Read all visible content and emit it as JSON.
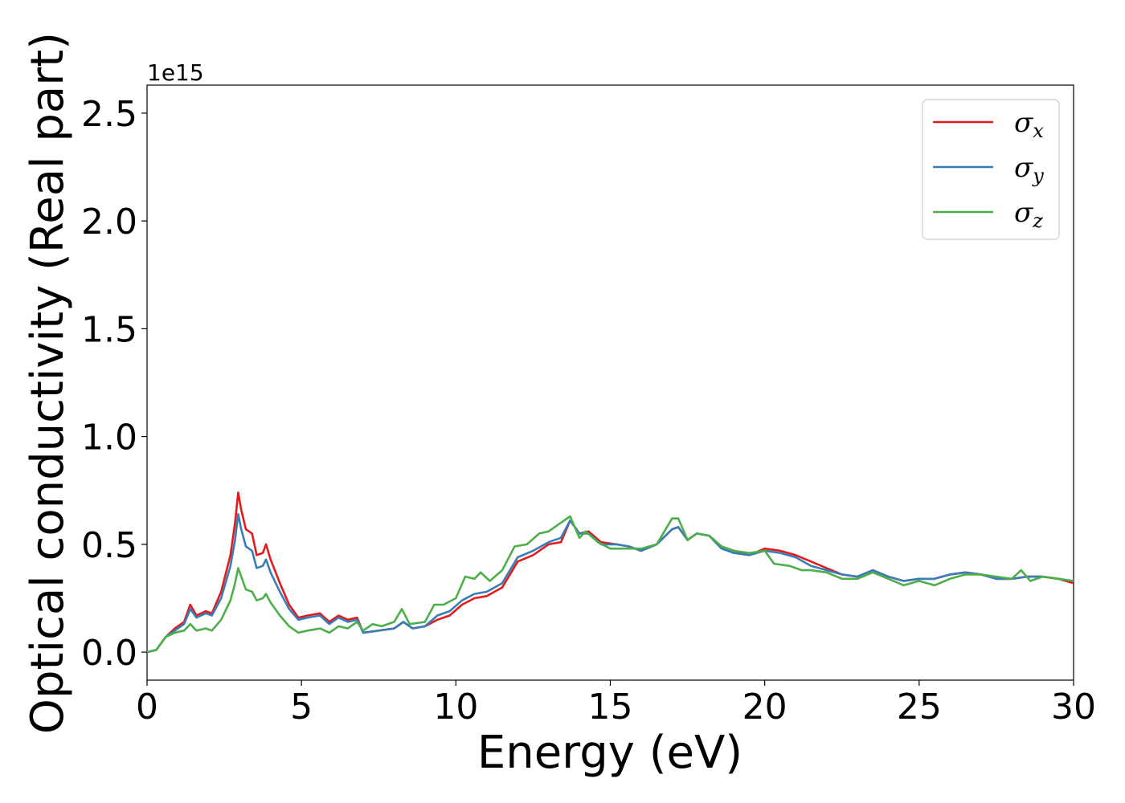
{
  "chart_data": {
    "type": "line",
    "xlabel": "Energy (eV)",
    "ylabel": "Optical conductivity (Real part)",
    "y_offset_label": "1e15",
    "xlim": [
      0,
      30
    ],
    "ylim": [
      -0.13,
      2.63
    ],
    "x_ticks": [
      0,
      5,
      10,
      15,
      20,
      25,
      30
    ],
    "x_tick_labels": [
      "0",
      "5",
      "10",
      "15",
      "20",
      "25",
      "30"
    ],
    "y_ticks": [
      0.0,
      0.5,
      1.0,
      1.5,
      2.0,
      2.5
    ],
    "y_tick_labels": [
      "0.0",
      "0.5",
      "1.0",
      "1.5",
      "2.0",
      "2.5"
    ],
    "grid": false,
    "legend_position": "top-right",
    "series": [
      {
        "name": "σx",
        "base": "σ",
        "sub": "x",
        "color": "#e41a1c",
        "points": [
          [
            0,
            0
          ],
          [
            0.3,
            0.01
          ],
          [
            0.6,
            0.07
          ],
          [
            0.9,
            0.11
          ],
          [
            1.2,
            0.14
          ],
          [
            1.4,
            0.22
          ],
          [
            1.6,
            0.17
          ],
          [
            1.9,
            0.19
          ],
          [
            2.1,
            0.18
          ],
          [
            2.4,
            0.28
          ],
          [
            2.7,
            0.45
          ],
          [
            2.85,
            0.6
          ],
          [
            2.95,
            0.74
          ],
          [
            3.05,
            0.66
          ],
          [
            3.2,
            0.57
          ],
          [
            3.4,
            0.55
          ],
          [
            3.55,
            0.45
          ],
          [
            3.75,
            0.46
          ],
          [
            3.85,
            0.5
          ],
          [
            4.0,
            0.43
          ],
          [
            4.3,
            0.32
          ],
          [
            4.6,
            0.22
          ],
          [
            4.9,
            0.16
          ],
          [
            5.2,
            0.17
          ],
          [
            5.6,
            0.18
          ],
          [
            5.9,
            0.14
          ],
          [
            6.2,
            0.17
          ],
          [
            6.5,
            0.15
          ],
          [
            6.8,
            0.16
          ],
          [
            7.0,
            0.09
          ],
          [
            7.5,
            0.1
          ],
          [
            8.0,
            0.11
          ],
          [
            8.3,
            0.14
          ],
          [
            8.6,
            0.11
          ],
          [
            9.0,
            0.12
          ],
          [
            9.4,
            0.15
          ],
          [
            9.8,
            0.17
          ],
          [
            10.2,
            0.22
          ],
          [
            10.6,
            0.25
          ],
          [
            11.0,
            0.26
          ],
          [
            11.5,
            0.3
          ],
          [
            12.0,
            0.42
          ],
          [
            12.5,
            0.45
          ],
          [
            13.0,
            0.5
          ],
          [
            13.4,
            0.51
          ],
          [
            13.7,
            0.61
          ],
          [
            14.0,
            0.55
          ],
          [
            14.3,
            0.56
          ],
          [
            14.7,
            0.51
          ],
          [
            15.2,
            0.5
          ],
          [
            15.6,
            0.49
          ],
          [
            16.0,
            0.47
          ],
          [
            16.5,
            0.5
          ],
          [
            17.0,
            0.57
          ],
          [
            17.2,
            0.58
          ],
          [
            17.5,
            0.52
          ],
          [
            17.8,
            0.55
          ],
          [
            18.2,
            0.54
          ],
          [
            18.6,
            0.49
          ],
          [
            19.0,
            0.47
          ],
          [
            19.5,
            0.45
          ],
          [
            20.0,
            0.48
          ],
          [
            20.5,
            0.47
          ],
          [
            21.0,
            0.45
          ],
          [
            21.5,
            0.42
          ],
          [
            22.0,
            0.39
          ],
          [
            22.5,
            0.36
          ],
          [
            23.0,
            0.35
          ],
          [
            23.5,
            0.38
          ],
          [
            24.0,
            0.35
          ],
          [
            24.5,
            0.33
          ],
          [
            25.0,
            0.34
          ],
          [
            25.5,
            0.34
          ],
          [
            26.0,
            0.36
          ],
          [
            26.5,
            0.37
          ],
          [
            27.0,
            0.36
          ],
          [
            27.5,
            0.34
          ],
          [
            28.0,
            0.34
          ],
          [
            28.5,
            0.35
          ],
          [
            29.0,
            0.35
          ],
          [
            29.5,
            0.34
          ],
          [
            30.0,
            0.32
          ]
        ]
      },
      {
        "name": "σy",
        "base": "σ",
        "sub": "y",
        "color": "#377eb8",
        "points": [
          [
            0,
            0
          ],
          [
            0.3,
            0.01
          ],
          [
            0.6,
            0.07
          ],
          [
            0.9,
            0.1
          ],
          [
            1.2,
            0.13
          ],
          [
            1.4,
            0.2
          ],
          [
            1.6,
            0.16
          ],
          [
            1.9,
            0.18
          ],
          [
            2.1,
            0.17
          ],
          [
            2.4,
            0.25
          ],
          [
            2.7,
            0.4
          ],
          [
            2.85,
            0.52
          ],
          [
            2.95,
            0.64
          ],
          [
            3.05,
            0.57
          ],
          [
            3.2,
            0.49
          ],
          [
            3.4,
            0.47
          ],
          [
            3.55,
            0.39
          ],
          [
            3.75,
            0.4
          ],
          [
            3.85,
            0.43
          ],
          [
            4.0,
            0.37
          ],
          [
            4.3,
            0.28
          ],
          [
            4.6,
            0.2
          ],
          [
            4.9,
            0.15
          ],
          [
            5.2,
            0.16
          ],
          [
            5.6,
            0.17
          ],
          [
            5.9,
            0.13
          ],
          [
            6.2,
            0.16
          ],
          [
            6.5,
            0.14
          ],
          [
            6.8,
            0.15
          ],
          [
            7.0,
            0.09
          ],
          [
            7.5,
            0.1
          ],
          [
            8.0,
            0.11
          ],
          [
            8.3,
            0.14
          ],
          [
            8.6,
            0.11
          ],
          [
            9.0,
            0.12
          ],
          [
            9.4,
            0.17
          ],
          [
            9.8,
            0.19
          ],
          [
            10.2,
            0.24
          ],
          [
            10.6,
            0.27
          ],
          [
            11.0,
            0.28
          ],
          [
            11.5,
            0.32
          ],
          [
            12.0,
            0.44
          ],
          [
            12.5,
            0.47
          ],
          [
            13.0,
            0.51
          ],
          [
            13.4,
            0.53
          ],
          [
            13.7,
            0.61
          ],
          [
            14.0,
            0.55
          ],
          [
            14.3,
            0.55
          ],
          [
            14.7,
            0.5
          ],
          [
            15.2,
            0.5
          ],
          [
            15.6,
            0.49
          ],
          [
            16.0,
            0.47
          ],
          [
            16.5,
            0.5
          ],
          [
            17.0,
            0.57
          ],
          [
            17.2,
            0.58
          ],
          [
            17.5,
            0.52
          ],
          [
            17.8,
            0.55
          ],
          [
            18.2,
            0.54
          ],
          [
            18.6,
            0.48
          ],
          [
            19.0,
            0.46
          ],
          [
            19.5,
            0.45
          ],
          [
            20.0,
            0.47
          ],
          [
            20.5,
            0.46
          ],
          [
            21.0,
            0.44
          ],
          [
            21.5,
            0.4
          ],
          [
            22.0,
            0.38
          ],
          [
            22.5,
            0.36
          ],
          [
            23.0,
            0.35
          ],
          [
            23.5,
            0.38
          ],
          [
            24.0,
            0.35
          ],
          [
            24.5,
            0.33
          ],
          [
            25.0,
            0.34
          ],
          [
            25.5,
            0.34
          ],
          [
            26.0,
            0.36
          ],
          [
            26.5,
            0.37
          ],
          [
            27.0,
            0.36
          ],
          [
            27.5,
            0.34
          ],
          [
            28.0,
            0.34
          ],
          [
            28.5,
            0.35
          ],
          [
            29.0,
            0.35
          ],
          [
            29.5,
            0.34
          ],
          [
            30.0,
            0.33
          ]
        ]
      },
      {
        "name": "σz",
        "base": "σ",
        "sub": "z",
        "color": "#4daf4a",
        "points": [
          [
            0,
            0
          ],
          [
            0.3,
            0.01
          ],
          [
            0.6,
            0.07
          ],
          [
            0.9,
            0.09
          ],
          [
            1.2,
            0.1
          ],
          [
            1.4,
            0.13
          ],
          [
            1.6,
            0.1
          ],
          [
            1.9,
            0.11
          ],
          [
            2.1,
            0.1
          ],
          [
            2.4,
            0.15
          ],
          [
            2.7,
            0.24
          ],
          [
            2.85,
            0.32
          ],
          [
            2.95,
            0.39
          ],
          [
            3.05,
            0.35
          ],
          [
            3.2,
            0.29
          ],
          [
            3.4,
            0.28
          ],
          [
            3.55,
            0.24
          ],
          [
            3.75,
            0.25
          ],
          [
            3.85,
            0.27
          ],
          [
            4.0,
            0.23
          ],
          [
            4.3,
            0.17
          ],
          [
            4.6,
            0.12
          ],
          [
            4.9,
            0.09
          ],
          [
            5.2,
            0.1
          ],
          [
            5.6,
            0.11
          ],
          [
            5.9,
            0.09
          ],
          [
            6.2,
            0.12
          ],
          [
            6.5,
            0.11
          ],
          [
            6.8,
            0.14
          ],
          [
            7.0,
            0.1
          ],
          [
            7.3,
            0.13
          ],
          [
            7.6,
            0.12
          ],
          [
            8.0,
            0.14
          ],
          [
            8.25,
            0.2
          ],
          [
            8.5,
            0.13
          ],
          [
            9.0,
            0.14
          ],
          [
            9.3,
            0.22
          ],
          [
            9.6,
            0.22
          ],
          [
            10.0,
            0.25
          ],
          [
            10.3,
            0.35
          ],
          [
            10.6,
            0.34
          ],
          [
            10.8,
            0.37
          ],
          [
            11.1,
            0.33
          ],
          [
            11.5,
            0.38
          ],
          [
            11.9,
            0.49
          ],
          [
            12.3,
            0.5
          ],
          [
            12.7,
            0.55
          ],
          [
            13.0,
            0.56
          ],
          [
            13.3,
            0.59
          ],
          [
            13.7,
            0.63
          ],
          [
            14.0,
            0.53
          ],
          [
            14.2,
            0.56
          ],
          [
            14.6,
            0.51
          ],
          [
            15.0,
            0.48
          ],
          [
            15.5,
            0.48
          ],
          [
            16.0,
            0.48
          ],
          [
            16.5,
            0.5
          ],
          [
            17.0,
            0.62
          ],
          [
            17.2,
            0.62
          ],
          [
            17.5,
            0.52
          ],
          [
            17.8,
            0.55
          ],
          [
            18.2,
            0.54
          ],
          [
            18.6,
            0.49
          ],
          [
            19.0,
            0.47
          ],
          [
            19.5,
            0.46
          ],
          [
            20.0,
            0.47
          ],
          [
            20.3,
            0.41
          ],
          [
            20.8,
            0.4
          ],
          [
            21.2,
            0.38
          ],
          [
            21.5,
            0.38
          ],
          [
            22.0,
            0.37
          ],
          [
            22.5,
            0.34
          ],
          [
            23.0,
            0.34
          ],
          [
            23.5,
            0.37
          ],
          [
            24.0,
            0.34
          ],
          [
            24.5,
            0.31
          ],
          [
            25.0,
            0.33
          ],
          [
            25.5,
            0.31
          ],
          [
            26.0,
            0.34
          ],
          [
            26.5,
            0.36
          ],
          [
            27.0,
            0.36
          ],
          [
            27.5,
            0.35
          ],
          [
            28.0,
            0.34
          ],
          [
            28.3,
            0.38
          ],
          [
            28.6,
            0.33
          ],
          [
            29.0,
            0.35
          ],
          [
            29.5,
            0.34
          ],
          [
            30.0,
            0.33
          ]
        ]
      }
    ]
  }
}
